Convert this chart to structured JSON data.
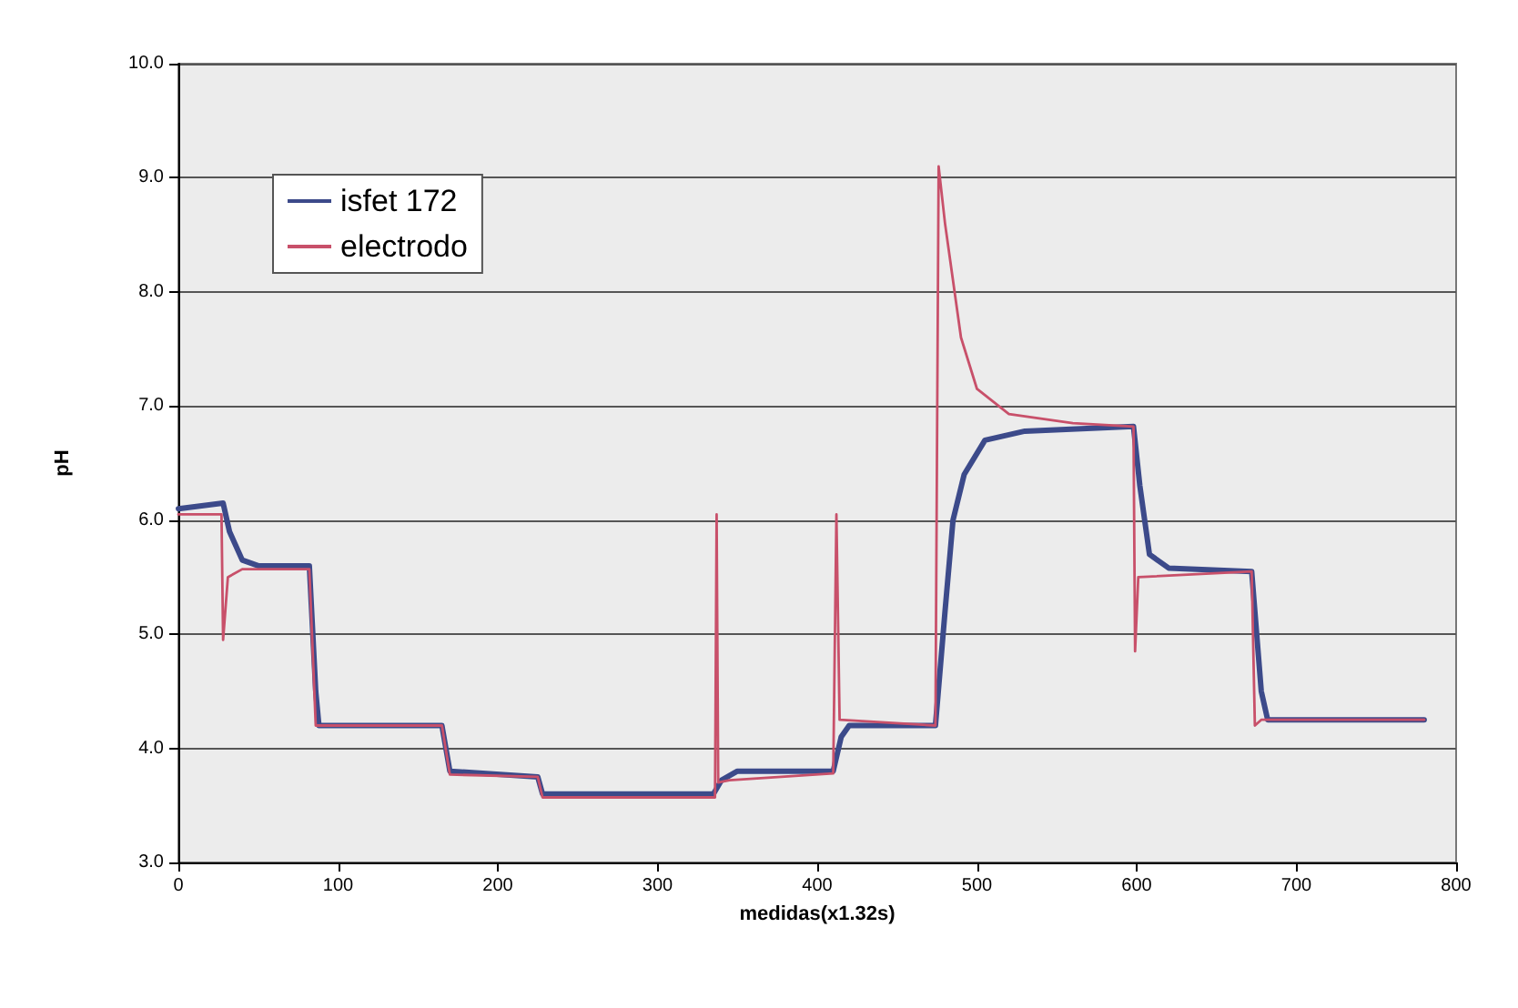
{
  "chart_data": {
    "type": "line",
    "xlabel": "medidas(x1.32s)",
    "ylabel": "pH",
    "xlim": [
      0,
      800
    ],
    "xticks": [
      0,
      100,
      200,
      300,
      400,
      500,
      600,
      700,
      800
    ],
    "ylim": [
      3,
      10
    ],
    "yticks": [
      {
        "value": 3,
        "label": "3.0"
      },
      {
        "value": 4,
        "label": "4.0"
      },
      {
        "value": 5,
        "label": "5.0"
      },
      {
        "value": 6,
        "label": "6.0"
      },
      {
        "value": 7,
        "label": "7.0"
      },
      {
        "value": 8,
        "label": "8.0"
      },
      {
        "value": 9,
        "label": "9.0"
      },
      {
        "value": 10,
        "label": "10.0"
      }
    ],
    "grid": "y",
    "legend": "top left",
    "marker": "none",
    "line_style": "solid",
    "series": [
      {
        "name": "isfet 172",
        "color": "#3c4a8a",
        "x": [
          0,
          28,
          32,
          40,
          50,
          82,
          86,
          88,
          165,
          170,
          225,
          228,
          335,
          340,
          350,
          410,
          415,
          420,
          474,
          480,
          485,
          492,
          505,
          530,
          598,
          602,
          608,
          620,
          672,
          678,
          682,
          780
        ],
        "values": [
          6.1,
          6.15,
          5.9,
          5.65,
          5.6,
          5.6,
          4.5,
          4.2,
          4.2,
          3.8,
          3.75,
          3.6,
          3.6,
          3.72,
          3.8,
          3.8,
          4.1,
          4.2,
          4.2,
          5.2,
          6.0,
          6.4,
          6.7,
          6.78,
          6.82,
          6.3,
          5.7,
          5.58,
          5.55,
          4.5,
          4.25,
          4.25
        ]
      },
      {
        "name": "electrodo",
        "color": "#c8506a",
        "x": [
          0,
          27,
          28,
          31,
          40,
          82,
          86,
          165,
          170,
          225,
          228,
          336,
          337,
          338,
          345,
          410,
          412,
          414,
          474,
          476,
          480,
          490,
          500,
          520,
          560,
          598,
          599,
          601,
          672,
          674,
          678,
          780
        ],
        "values": [
          6.05,
          6.05,
          4.95,
          5.5,
          5.57,
          5.57,
          4.2,
          4.2,
          3.77,
          3.75,
          3.57,
          3.57,
          6.05,
          3.7,
          3.72,
          3.78,
          6.05,
          4.25,
          4.2,
          9.1,
          8.6,
          7.6,
          7.15,
          6.93,
          6.85,
          6.82,
          4.85,
          5.5,
          5.55,
          4.2,
          4.25,
          4.25
        ]
      }
    ]
  }
}
